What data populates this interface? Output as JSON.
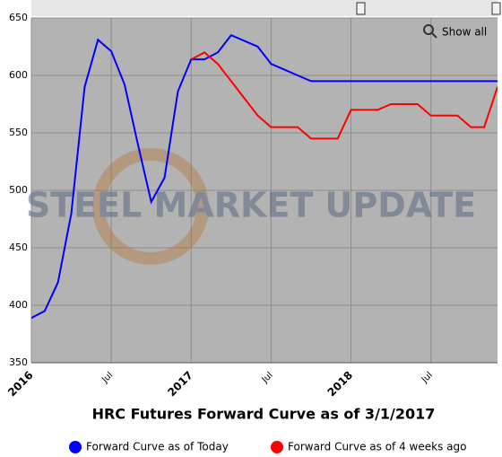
{
  "chart_data": {
    "type": "line",
    "title": "HRC Futures Forward Curve as of 3/1/2017",
    "watermark": "STEEL MARKET UPDATE",
    "button": "Show all",
    "categories": [
      "2016",
      null,
      null,
      null,
      null,
      null,
      "Jul",
      null,
      null,
      null,
      null,
      null,
      "2017",
      null,
      null,
      null,
      null,
      null,
      "Jul",
      null,
      null,
      null,
      null,
      null,
      "2018",
      null,
      null,
      null,
      null,
      null,
      "Jul",
      null,
      null,
      null,
      null,
      null
    ],
    "series": [
      {
        "name": "Forward Curve as of Today",
        "color": "#0000ff",
        "values": [
          389,
          395,
          420,
          480,
          590,
          631,
          621,
          592,
          540,
          490,
          511,
          586,
          614,
          614,
          620,
          635,
          630,
          625,
          610,
          605,
          600,
          595,
          595,
          595,
          595,
          595,
          595,
          595,
          595,
          595,
          595,
          595,
          595,
          595,
          595,
          595
        ]
      },
      {
        "name": "Forward Curve as of 4 weeks ago",
        "color": "#ff0000",
        "values": [
          null,
          null,
          null,
          null,
          null,
          null,
          null,
          null,
          null,
          null,
          null,
          null,
          614,
          620,
          610,
          595,
          580,
          565,
          555,
          555,
          555,
          545,
          545,
          545,
          570,
          570,
          570,
          575,
          575,
          575,
          565,
          565,
          565,
          555,
          555,
          590
        ]
      }
    ],
    "ylim": [
      350,
      650
    ],
    "yticks": [
      350,
      400,
      450,
      500,
      550,
      600,
      650
    ],
    "grid": true
  }
}
